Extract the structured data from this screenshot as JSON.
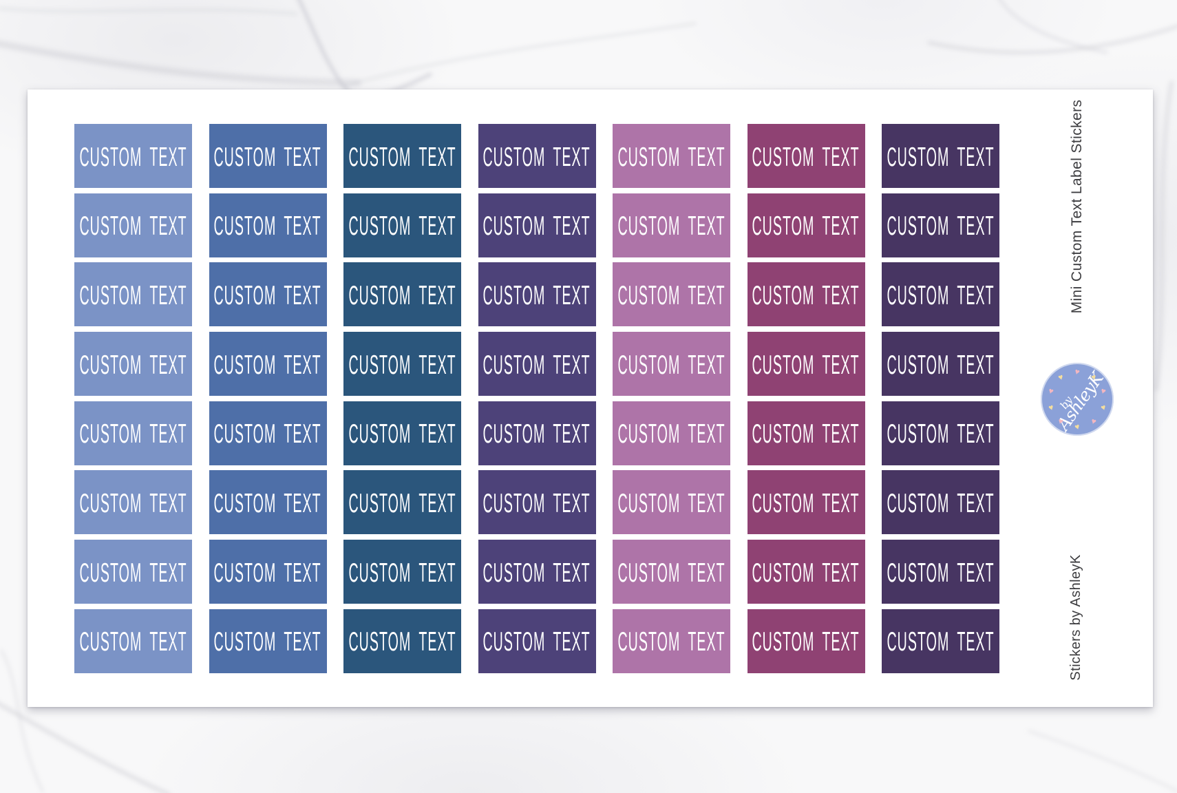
{
  "sheet": {
    "sticker_label": "CUSTOM TEXT",
    "rows": 8,
    "label_text_color": "#ffffff",
    "columns": [
      {
        "name": "light-periwinkle-blue",
        "color": "#7b93c6"
      },
      {
        "name": "medium-blue",
        "color": "#4e6fa8"
      },
      {
        "name": "navy-blue",
        "color": "#2b567c"
      },
      {
        "name": "indigo-purple",
        "color": "#4d4279"
      },
      {
        "name": "orchid-mauve",
        "color": "#ae74a8"
      },
      {
        "name": "plum-magenta",
        "color": "#8f4273"
      },
      {
        "name": "dark-violet",
        "color": "#473562"
      }
    ]
  },
  "side": {
    "top_caption": "Mini Custom Text Label Stickers",
    "bottom_caption": "Stickers by AshleyK",
    "logo": {
      "line1": "by",
      "line2": "AshleyK",
      "circle_color": "#8ba1d8",
      "text_color": "#ffffff",
      "heart_colors": [
        "#f3b7c0",
        "#f4de9e"
      ],
      "heart_count": 10
    }
  }
}
